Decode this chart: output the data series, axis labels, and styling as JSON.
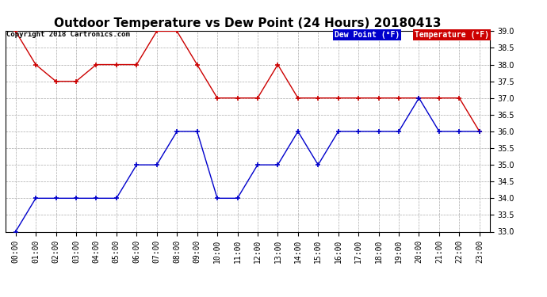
{
  "title": "Outdoor Temperature vs Dew Point (24 Hours) 20180413",
  "copyright_text": "Copyright 2018 Cartronics.com",
  "x_labels": [
    "00:00",
    "01:00",
    "02:00",
    "03:00",
    "04:00",
    "05:00",
    "06:00",
    "07:00",
    "08:00",
    "09:00",
    "10:00",
    "11:00",
    "12:00",
    "13:00",
    "14:00",
    "15:00",
    "16:00",
    "17:00",
    "18:00",
    "19:00",
    "20:00",
    "21:00",
    "22:00",
    "23:00"
  ],
  "temperature": [
    39.0,
    38.0,
    37.5,
    37.5,
    38.0,
    38.0,
    38.0,
    39.0,
    39.0,
    38.0,
    37.0,
    37.0,
    37.0,
    38.0,
    37.0,
    37.0,
    37.0,
    37.0,
    37.0,
    37.0,
    37.0,
    37.0,
    37.0,
    36.0
  ],
  "dew_point": [
    33.0,
    34.0,
    34.0,
    34.0,
    34.0,
    34.0,
    35.0,
    35.0,
    36.0,
    36.0,
    34.0,
    34.0,
    35.0,
    35.0,
    36.0,
    35.0,
    36.0,
    36.0,
    36.0,
    36.0,
    37.0,
    36.0,
    36.0,
    36.0
  ],
  "temp_color": "#cc0000",
  "dew_color": "#0000cc",
  "ylim": [
    33.0,
    39.0
  ],
  "yticks": [
    33.0,
    33.5,
    34.0,
    34.5,
    35.0,
    35.5,
    36.0,
    36.5,
    37.0,
    37.5,
    38.0,
    38.5,
    39.0
  ],
  "bg_color": "#ffffff",
  "plot_bg_color": "#ffffff",
  "grid_color": "#aaaaaa",
  "title_fontsize": 11,
  "legend_dew_bg": "#0000cc",
  "legend_temp_bg": "#cc0000",
  "legend_text_color": "#ffffff",
  "copyright_fontsize": 6.5,
  "tick_fontsize": 7
}
